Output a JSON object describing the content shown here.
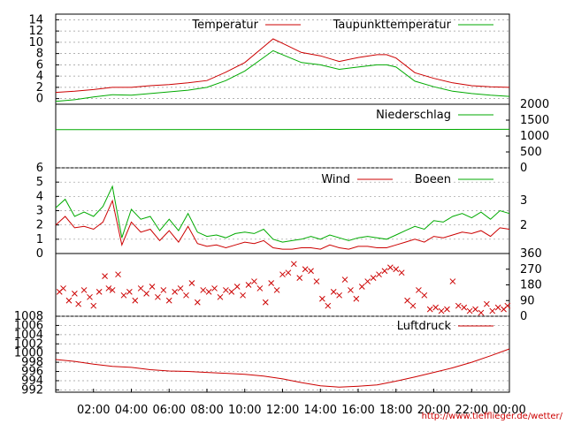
{
  "chart_data": [
    {
      "type": "line",
      "panel": "temperature",
      "ylim": [
        -1,
        15
      ],
      "yticks": [
        "0",
        "2",
        "4",
        "6",
        "8",
        "10",
        "12",
        "14"
      ],
      "grid": true,
      "legend_placement": "top-right",
      "series": [
        {
          "name": "Temperatur",
          "color": "#cc0000",
          "x": [
            0,
            1,
            2,
            3,
            4,
            5,
            6,
            7,
            8,
            9,
            10,
            11,
            11.5,
            12,
            13,
            14,
            15,
            16,
            17,
            17.5,
            18,
            19,
            20,
            21,
            22,
            23,
            24
          ],
          "values": [
            1.1,
            1.3,
            1.6,
            2.0,
            2.0,
            2.3,
            2.5,
            2.8,
            3.2,
            4.7,
            6.4,
            9.2,
            10.6,
            9.8,
            8.2,
            7.6,
            6.6,
            7.3,
            7.8,
            7.8,
            7.2,
            4.6,
            3.6,
            2.8,
            2.3,
            2.1,
            2.0
          ]
        },
        {
          "name": "Taupunkttemperatur",
          "color": "#00aa00",
          "x": [
            0,
            1,
            2,
            3,
            4,
            5,
            6,
            7,
            8,
            9,
            10,
            11,
            11.5,
            12,
            13,
            14,
            15,
            16,
            17,
            17.5,
            18,
            19,
            20,
            21,
            22,
            23,
            24
          ],
          "values": [
            -0.5,
            -0.2,
            0.3,
            0.7,
            0.6,
            0.9,
            1.2,
            1.5,
            2.0,
            3.2,
            4.9,
            7.3,
            8.5,
            7.8,
            6.4,
            6.0,
            5.2,
            5.6,
            6.0,
            6.0,
            5.6,
            3.1,
            2.1,
            1.3,
            0.9,
            0.6,
            0.4
          ]
        }
      ]
    },
    {
      "type": "line",
      "panel": "precipitation",
      "ylim": [
        0,
        2000
      ],
      "yticks": [
        "0",
        "500",
        "1000",
        "1500",
        "2000"
      ],
      "grid": false,
      "legend_placement": "top-right",
      "series": [
        {
          "name": "Niederschlag",
          "color": "#00aa00",
          "x": [
            0,
            12,
            24
          ],
          "values": [
            1200,
            1205,
            1210
          ]
        }
      ]
    },
    {
      "type": "line",
      "panel": "wind",
      "ylim": [
        0,
        6
      ],
      "yticks": [
        "0",
        "1",
        "2",
        "3",
        "4",
        "5",
        "6"
      ],
      "right_ticks": [
        "2",
        "3"
      ],
      "grid": true,
      "legend_placement": "top-right",
      "series": [
        {
          "name": "Wind",
          "color": "#cc0000",
          "x": [
            0,
            0.5,
            1,
            1.5,
            2,
            2.5,
            3,
            3.5,
            4,
            4.5,
            5,
            5.5,
            6,
            6.5,
            7,
            7.5,
            8,
            8.5,
            9,
            9.5,
            10,
            10.5,
            11,
            11.5,
            12,
            12.5,
            13,
            13.5,
            14,
            14.5,
            15,
            15.5,
            16,
            16.5,
            17,
            17.5,
            18,
            18.5,
            19,
            19.5,
            20,
            20.5,
            21,
            21.5,
            22,
            22.5,
            23,
            23.5,
            24
          ],
          "values": [
            2.0,
            2.6,
            1.8,
            1.9,
            1.7,
            2.2,
            3.7,
            0.6,
            2.2,
            1.5,
            1.7,
            0.9,
            1.6,
            0.8,
            1.9,
            0.7,
            0.5,
            0.6,
            0.4,
            0.6,
            0.8,
            0.7,
            0.9,
            0.4,
            0.3,
            0.3,
            0.4,
            0.4,
            0.3,
            0.6,
            0.4,
            0.3,
            0.5,
            0.5,
            0.4,
            0.4,
            0.6,
            0.8,
            1.0,
            0.8,
            1.2,
            1.1,
            1.3,
            1.5,
            1.4,
            1.6,
            1.2,
            1.8,
            1.7
          ]
        },
        {
          "name": "Boeen",
          "color": "#00aa00",
          "x": [
            0,
            0.5,
            1,
            1.5,
            2,
            2.5,
            3,
            3.5,
            4,
            4.5,
            5,
            5.5,
            6,
            6.5,
            7,
            7.5,
            8,
            8.5,
            9,
            9.5,
            10,
            10.5,
            11,
            11.5,
            12,
            12.5,
            13,
            13.5,
            14,
            14.5,
            15,
            15.5,
            16,
            16.5,
            17,
            17.5,
            18,
            18.5,
            19,
            19.5,
            20,
            20.5,
            21,
            21.5,
            22,
            22.5,
            23,
            23.5,
            24
          ],
          "values": [
            3.2,
            3.8,
            2.6,
            2.9,
            2.6,
            3.3,
            4.7,
            1.1,
            3.1,
            2.4,
            2.6,
            1.6,
            2.4,
            1.6,
            2.8,
            1.5,
            1.2,
            1.3,
            1.1,
            1.4,
            1.5,
            1.4,
            1.7,
            1.0,
            0.8,
            0.9,
            1.0,
            1.2,
            1.0,
            1.3,
            1.1,
            0.9,
            1.1,
            1.2,
            1.1,
            1.0,
            1.3,
            1.6,
            1.9,
            1.7,
            2.3,
            2.2,
            2.6,
            2.8,
            2.5,
            2.9,
            2.4,
            3.0,
            2.8
          ]
        }
      ]
    },
    {
      "type": "scatter",
      "panel": "wind-direction",
      "ylim": [
        0,
        360
      ],
      "yticks": [
        "0",
        "90",
        "180",
        "270",
        "360"
      ],
      "marker": "x",
      "color": "#cc0000",
      "x": [
        0.2,
        0.4,
        0.7,
        1.0,
        1.2,
        1.5,
        1.8,
        2.0,
        2.3,
        2.6,
        2.8,
        3.0,
        3.3,
        3.6,
        3.9,
        4.2,
        4.5,
        4.8,
        5.1,
        5.4,
        5.7,
        6.0,
        6.3,
        6.6,
        6.9,
        7.2,
        7.5,
        7.8,
        8.1,
        8.4,
        8.7,
        9.0,
        9.3,
        9.6,
        9.9,
        10.2,
        10.5,
        10.8,
        11.1,
        11.4,
        11.7,
        12.0,
        12.3,
        12.6,
        12.9,
        13.2,
        13.5,
        13.8,
        14.1,
        14.4,
        14.7,
        15.0,
        15.3,
        15.6,
        15.9,
        16.2,
        16.5,
        16.8,
        17.1,
        17.4,
        17.7,
        18.0,
        18.3,
        18.6,
        18.9,
        19.2,
        19.5,
        19.8,
        20.1,
        20.4,
        20.7,
        21.0,
        21.3,
        21.6,
        21.9,
        22.2,
        22.5,
        22.8,
        23.1,
        23.4,
        23.7,
        23.9
      ],
      "values": [
        140,
        160,
        90,
        130,
        70,
        150,
        110,
        60,
        140,
        230,
        160,
        150,
        240,
        120,
        140,
        90,
        160,
        130,
        170,
        110,
        150,
        90,
        140,
        160,
        120,
        190,
        80,
        150,
        140,
        160,
        110,
        150,
        140,
        170,
        120,
        180,
        200,
        160,
        80,
        190,
        150,
        240,
        250,
        300,
        220,
        270,
        260,
        200,
        100,
        60,
        140,
        120,
        210,
        150,
        100,
        170,
        200,
        220,
        240,
        260,
        280,
        270,
        250,
        90,
        60,
        150,
        120,
        40,
        50,
        30,
        40,
        200,
        60,
        50,
        30,
        40,
        20,
        70,
        30,
        50,
        40,
        60
      ]
    },
    {
      "type": "line",
      "panel": "pressure",
      "ylim": [
        991.5,
        1008
      ],
      "yticks": [
        "992",
        "994",
        "996",
        "998",
        "1000",
        "1002",
        "1004",
        "1006",
        "1008"
      ],
      "grid": true,
      "legend_placement": "top-right",
      "series": [
        {
          "name": "Luftdruck",
          "color": "#cc0000",
          "x": [
            0,
            1,
            2,
            3,
            4,
            5,
            6,
            7,
            8,
            9,
            10,
            11,
            12,
            13,
            14,
            15,
            16,
            17,
            18,
            19,
            20,
            21,
            22,
            23,
            24
          ],
          "values": [
            998.6,
            998.2,
            997.6,
            997.1,
            996.9,
            996.4,
            996.1,
            996.0,
            995.8,
            995.6,
            995.4,
            995.0,
            994.4,
            993.6,
            992.9,
            992.6,
            992.8,
            993.1,
            993.9,
            994.8,
            995.8,
            996.8,
            998.0,
            999.4,
            1000.9
          ]
        }
      ]
    }
  ],
  "xaxis": {
    "range": [
      0,
      24
    ],
    "ticks": [
      "02:00",
      "04:00",
      "06:00",
      "08:00",
      "10:00",
      "12:00",
      "14:00",
      "16:00",
      "18:00",
      "20:00",
      "22:00",
      "00:00"
    ]
  },
  "credit": "http://www.tiefflieger.de/wetter/"
}
